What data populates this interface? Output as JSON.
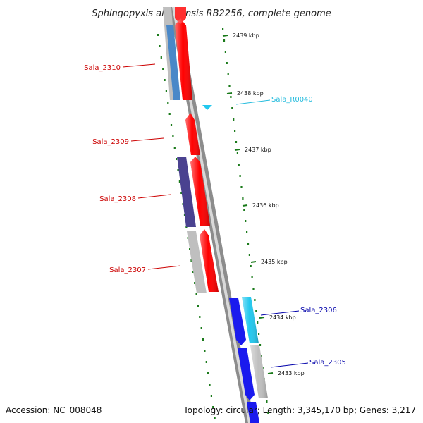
{
  "title": "Sphingopyxis alaskensis RB2256, complete genome",
  "footer": {
    "accession": "Accession: NC_008048",
    "summary": "Topology: circular; Length: 3,345,170 bp; Genes: 3,217"
  },
  "colors": {
    "label_red": "#cc0000",
    "label_cyan": "#22bbdd",
    "label_blue": "#0000aa",
    "tick_green": "#1a7a1a",
    "gene_red": "#ff0000",
    "gene_blue": "#1a1aee",
    "gene_navy": "#4a4290",
    "gene_cyan": "#22c8ee",
    "gene_grey": "#bfbfbf",
    "gene_steel": "#4a88c8",
    "backbone": "#8c8c8c"
  },
  "ticks": [
    {
      "label": "2439 kbp"
    },
    {
      "label": "2438 kbp"
    },
    {
      "label": "2437 kbp"
    },
    {
      "label": "2436 kbp"
    },
    {
      "label": "2435 kbp"
    },
    {
      "label": "2434 kbp"
    },
    {
      "label": "2433 kbp"
    }
  ],
  "genes": [
    {
      "name": "Sala_2310"
    },
    {
      "name": "Sala_R0040"
    },
    {
      "name": "Sala_2309"
    },
    {
      "name": "Sala_2308"
    },
    {
      "name": "Sala_2307"
    },
    {
      "name": "Sala_2306"
    },
    {
      "name": "Sala_2305"
    }
  ]
}
